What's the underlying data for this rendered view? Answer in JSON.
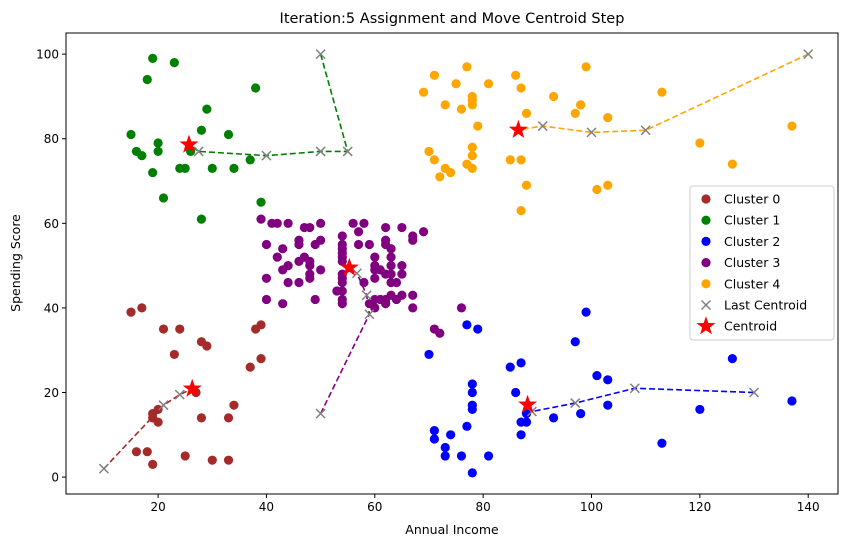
{
  "chart_data": {
    "type": "scatter",
    "title": "Iteration:5 Assignment and Move Centroid Step",
    "xlabel": "Annual Income",
    "ylabel": "Spending Score",
    "xlim": [
      3,
      145.5
    ],
    "ylim": [
      -4,
      105
    ],
    "xticks": [
      20,
      40,
      60,
      80,
      100,
      120,
      140
    ],
    "yticks": [
      0,
      20,
      40,
      60,
      80,
      100
    ],
    "grid": false,
    "legend_position": "center-right",
    "series": [
      {
        "name": "Cluster 0",
        "color": "#a52a2a",
        "points": [
          [
            15,
            39
          ],
          [
            17,
            40
          ],
          [
            19,
            14
          ],
          [
            19,
            15
          ],
          [
            20,
            13
          ],
          [
            20,
            16
          ],
          [
            21,
            35
          ],
          [
            24,
            35
          ],
          [
            23,
            29
          ],
          [
            27,
            20
          ],
          [
            25,
            5
          ],
          [
            16,
            6
          ],
          [
            18,
            6
          ],
          [
            19,
            3
          ],
          [
            28,
            14
          ],
          [
            28,
            32
          ],
          [
            29,
            31
          ],
          [
            30,
            4
          ],
          [
            33,
            14
          ],
          [
            33,
            4
          ],
          [
            34,
            17
          ],
          [
            37,
            26
          ],
          [
            38,
            35
          ],
          [
            39,
            36
          ],
          [
            39,
            28
          ]
        ]
      },
      {
        "name": "Cluster 1",
        "color": "#008000",
        "points": [
          [
            19,
            99
          ],
          [
            18,
            94
          ],
          [
            23,
            98
          ],
          [
            15,
            81
          ],
          [
            16,
            77
          ],
          [
            17,
            76
          ],
          [
            19,
            72
          ],
          [
            20,
            79
          ],
          [
            20,
            77
          ],
          [
            21,
            66
          ],
          [
            24,
            73
          ],
          [
            25,
            73
          ],
          [
            26,
            77
          ],
          [
            28,
            82
          ],
          [
            28,
            61
          ],
          [
            29,
            87
          ],
          [
            30,
            73
          ],
          [
            33,
            81
          ],
          [
            34,
            73
          ],
          [
            37,
            75
          ],
          [
            38,
            92
          ],
          [
            39,
            65
          ]
        ]
      },
      {
        "name": "Cluster 2",
        "color": "#0000ff",
        "points": [
          [
            70,
            29
          ],
          [
            71,
            11
          ],
          [
            71,
            9
          ],
          [
            73,
            5
          ],
          [
            73,
            7
          ],
          [
            74,
            10
          ],
          [
            76,
            5
          ],
          [
            77,
            12
          ],
          [
            77,
            36
          ],
          [
            78,
            22
          ],
          [
            78,
            17
          ],
          [
            78,
            20
          ],
          [
            78,
            16
          ],
          [
            78,
            1
          ],
          [
            79,
            35
          ],
          [
            81,
            5
          ],
          [
            85,
            26
          ],
          [
            86,
            20
          ],
          [
            87,
            27
          ],
          [
            87,
            10
          ],
          [
            87,
            13
          ],
          [
            88,
            13
          ],
          [
            88,
            15
          ],
          [
            93,
            14
          ],
          [
            97,
            32
          ],
          [
            98,
            15
          ],
          [
            99,
            39
          ],
          [
            101,
            24
          ],
          [
            103,
            17
          ],
          [
            103,
            23
          ],
          [
            113,
            8
          ],
          [
            120,
            16
          ],
          [
            126,
            28
          ],
          [
            137,
            18
          ]
        ]
      },
      {
        "name": "Cluster 3",
        "color": "#800080",
        "points": [
          [
            39,
            61
          ],
          [
            40,
            47
          ],
          [
            40,
            42
          ],
          [
            40,
            55
          ],
          [
            42,
            52
          ],
          [
            42,
            60
          ],
          [
            43,
            49
          ],
          [
            43,
            54
          ],
          [
            43,
            41
          ],
          [
            44,
            46
          ],
          [
            44,
            50
          ],
          [
            46,
            51
          ],
          [
            46,
            46
          ],
          [
            46,
            56
          ],
          [
            46,
            55
          ],
          [
            47,
            52
          ],
          [
            47,
            59
          ],
          [
            48,
            51
          ],
          [
            48,
            59
          ],
          [
            48,
            50
          ],
          [
            48,
            48
          ],
          [
            48,
            47
          ],
          [
            49,
            55
          ],
          [
            49,
            42
          ],
          [
            50,
            49
          ],
          [
            50,
            56
          ],
          [
            54,
            47
          ],
          [
            54,
            54
          ],
          [
            54,
            53
          ],
          [
            54,
            48
          ],
          [
            54,
            52
          ],
          [
            54,
            42
          ],
          [
            54,
            51
          ],
          [
            54,
            55
          ],
          [
            54,
            41
          ],
          [
            54,
            44
          ],
          [
            54,
            57
          ],
          [
            54,
            46
          ],
          [
            57,
            58
          ],
          [
            57,
            55
          ],
          [
            58,
            60
          ],
          [
            58,
            46
          ],
          [
            59,
            55
          ],
          [
            59,
            41
          ],
          [
            60,
            49
          ],
          [
            60,
            40
          ],
          [
            60,
            42
          ],
          [
            60,
            52
          ],
          [
            60,
            47
          ],
          [
            60,
            50
          ],
          [
            61,
            42
          ],
          [
            61,
            49
          ],
          [
            62,
            41
          ],
          [
            62,
            48
          ],
          [
            62,
            59
          ],
          [
            62,
            55
          ],
          [
            62,
            56
          ],
          [
            62,
            42
          ],
          [
            63,
            50
          ],
          [
            63,
            46
          ],
          [
            63,
            43
          ],
          [
            63,
            48
          ],
          [
            63,
            52
          ],
          [
            63,
            54
          ],
          [
            64,
            42
          ],
          [
            64,
            46
          ],
          [
            65,
            48
          ],
          [
            65,
            50
          ],
          [
            65,
            43
          ],
          [
            65,
            59
          ],
          [
            67,
            43
          ],
          [
            67,
            57
          ],
          [
            67,
            56
          ],
          [
            67,
            40
          ],
          [
            69,
            58
          ],
          [
            71,
            35
          ],
          [
            72,
            34
          ],
          [
            76,
            40
          ],
          [
            56,
            60
          ],
          [
            44,
            60
          ],
          [
            41,
            60
          ],
          [
            50,
            60
          ],
          [
            53,
            44
          ]
        ]
      },
      {
        "name": "Cluster 4",
        "color": "#ffa500",
        "points": [
          [
            69,
            91
          ],
          [
            70,
            77
          ],
          [
            71,
            95
          ],
          [
            71,
            75
          ],
          [
            72,
            71
          ],
          [
            73,
            88
          ],
          [
            73,
            73
          ],
          [
            74,
            72
          ],
          [
            75,
            93
          ],
          [
            76,
            87
          ],
          [
            77,
            97
          ],
          [
            77,
            74
          ],
          [
            78,
            90
          ],
          [
            78,
            88
          ],
          [
            78,
            76
          ],
          [
            78,
            89
          ],
          [
            78,
            78
          ],
          [
            78,
            73
          ],
          [
            79,
            83
          ],
          [
            81,
            93
          ],
          [
            85,
            75
          ],
          [
            86,
            95
          ],
          [
            87,
            63
          ],
          [
            87,
            75
          ],
          [
            87,
            92
          ],
          [
            88,
            86
          ],
          [
            88,
            69
          ],
          [
            93,
            90
          ],
          [
            97,
            86
          ],
          [
            98,
            88
          ],
          [
            99,
            97
          ],
          [
            101,
            68
          ],
          [
            103,
            85
          ],
          [
            103,
            69
          ],
          [
            113,
            91
          ],
          [
            120,
            79
          ],
          [
            126,
            74
          ],
          [
            137,
            83
          ],
          [
            98,
            88
          ]
        ]
      }
    ],
    "centroid_paths": [
      {
        "cluster": "Cluster 0",
        "color": "#a52a2a",
        "points": [
          [
            10,
            2
          ],
          [
            21,
            17
          ],
          [
            24,
            19.5
          ],
          [
            26.3,
            20.9
          ]
        ]
      },
      {
        "cluster": "Cluster 1",
        "color": "#008000",
        "points": [
          [
            50,
            100
          ],
          [
            55,
            77
          ],
          [
            50,
            77
          ],
          [
            40,
            76
          ],
          [
            27.5,
            77
          ],
          [
            25.7,
            78.6
          ]
        ]
      },
      {
        "cluster": "Cluster 2",
        "color": "#0000ff",
        "points": [
          [
            130,
            20
          ],
          [
            108,
            21
          ],
          [
            97,
            17.5
          ],
          [
            89,
            15.5
          ],
          [
            88.2,
            17.1
          ]
        ]
      },
      {
        "cluster": "Cluster 3",
        "color": "#800080",
        "points": [
          [
            50,
            15
          ],
          [
            59,
            38.5
          ],
          [
            58.5,
            43
          ],
          [
            56.7,
            48.2
          ],
          [
            55.3,
            49.5
          ]
        ]
      },
      {
        "cluster": "Cluster 4",
        "color": "#ffa500",
        "points": [
          [
            140,
            100
          ],
          [
            110,
            82
          ],
          [
            100,
            81.5
          ],
          [
            91,
            83
          ],
          [
            86.5,
            82.1
          ]
        ]
      }
    ],
    "last_centroids": [
      [
        10,
        2
      ],
      [
        21,
        17
      ],
      [
        24,
        19.5
      ],
      [
        50,
        100
      ],
      [
        55,
        77
      ],
      [
        50,
        77
      ],
      [
        40,
        76
      ],
      [
        27.5,
        77
      ],
      [
        130,
        20
      ],
      [
        108,
        21
      ],
      [
        97,
        17.5
      ],
      [
        89,
        15.5
      ],
      [
        50,
        15
      ],
      [
        59,
        38.5
      ],
      [
        58.5,
        43
      ],
      [
        56.7,
        48.2
      ],
      [
        140,
        100
      ],
      [
        110,
        82
      ],
      [
        100,
        81.5
      ],
      [
        91,
        83
      ]
    ],
    "centroids": [
      [
        26.3,
        20.9
      ],
      [
        25.7,
        78.6
      ],
      [
        88.2,
        17.1
      ],
      [
        55.3,
        49.5
      ],
      [
        86.5,
        82.1
      ]
    ],
    "legend": [
      {
        "label": "Cluster 0",
        "marker": "dot",
        "color": "#a52a2a"
      },
      {
        "label": "Cluster 1",
        "marker": "dot",
        "color": "#008000"
      },
      {
        "label": "Cluster 2",
        "marker": "dot",
        "color": "#0000ff"
      },
      {
        "label": "Cluster 3",
        "marker": "dot",
        "color": "#800080"
      },
      {
        "label": "Cluster 4",
        "marker": "dot",
        "color": "#ffa500"
      },
      {
        "label": "Last Centroid",
        "marker": "x",
        "color": "#808080"
      },
      {
        "label": "Centroid",
        "marker": "star",
        "color": "#ff0000"
      }
    ]
  }
}
